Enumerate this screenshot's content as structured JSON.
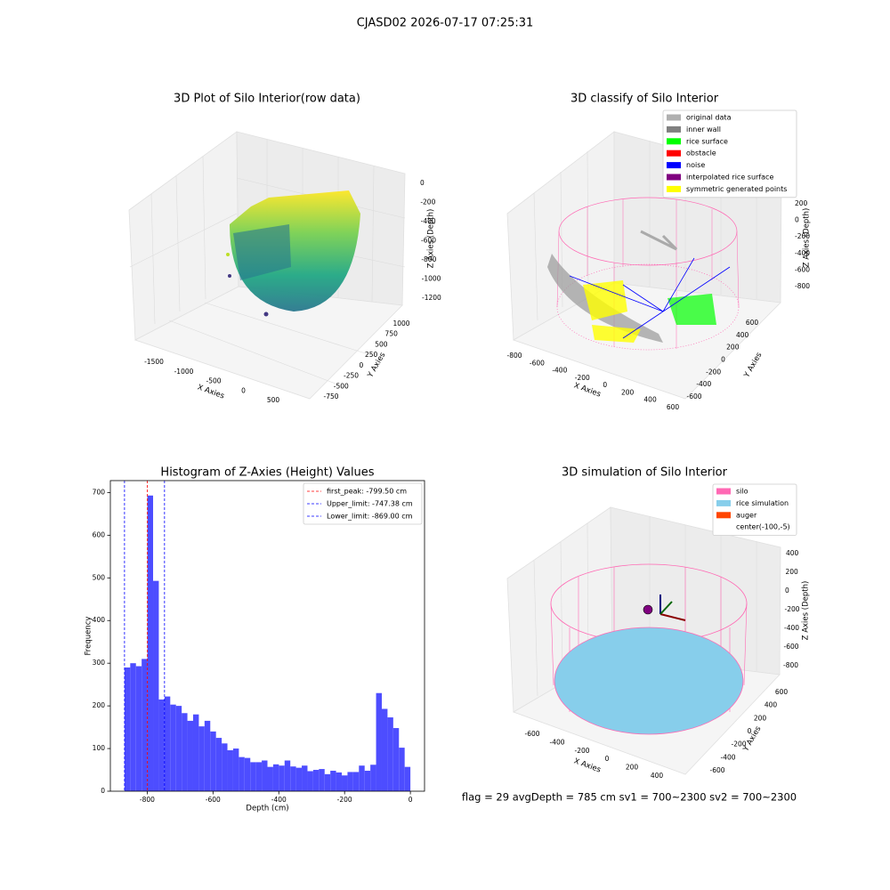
{
  "title": "CJASD02 2026-07-17 07:25:31",
  "footer": "flag = 29  avgDepth = 785 cm  sv1 = 700~2300  sv2 = 700~2300",
  "chart_data": [
    {
      "type": "scatter3d",
      "title": "3D Plot of Silo Interior(row data)",
      "xlabel": "X Axies",
      "ylabel": "Y Axies",
      "zlabel": "Z Axies (Depth)",
      "xticks": [
        -1500,
        -1000,
        -500,
        0,
        500
      ],
      "yticks": [
        -750,
        -500,
        -250,
        0,
        250,
        500,
        750,
        1000
      ],
      "zticks": [
        0,
        -200,
        -400,
        -600,
        -800,
        -1000,
        -1200
      ]
    },
    {
      "type": "scatter3d",
      "title": "3D classify of Silo Interior",
      "xlabel": "X Axies",
      "ylabel": "Y Axies",
      "zlabel": "Z Axies (Depth)",
      "xticks": [
        -800,
        -600,
        -400,
        -200,
        0,
        200,
        400,
        600
      ],
      "yticks": [
        -600,
        -400,
        -200,
        0,
        200,
        400,
        600
      ],
      "zticks": [
        200,
        0,
        -200,
        -400,
        -600,
        -800
      ],
      "legend": [
        {
          "name": "original data",
          "color": "#b0b0b0"
        },
        {
          "name": "inner wall",
          "color": "#808080"
        },
        {
          "name": "rice surface",
          "color": "#00ff00"
        },
        {
          "name": "obstacle",
          "color": "#ff0000"
        },
        {
          "name": "noise",
          "color": "#0000ff"
        },
        {
          "name": "interpolated rice surface",
          "color": "#800080"
        },
        {
          "name": "symmetric generated points",
          "color": "#ffff00"
        }
      ]
    },
    {
      "type": "histogram",
      "title": "Histogram of Z-Axies (Height) Values",
      "xlabel": "Depth (cm)",
      "ylabel": "Frequency",
      "color": "#4d4dff",
      "bins": [
        -869,
        -851.62,
        -834.24,
        -816.86,
        -799.48,
        -782.1,
        -764.72,
        -747.34,
        -729.96,
        -712.58,
        -695.2,
        -677.82,
        -660.44,
        -643.06,
        -625.68,
        -608.3,
        -590.92,
        -573.54,
        -556.16,
        -538.78,
        -521.4,
        -504.02,
        -486.64,
        -469.26,
        -451.88,
        -434.5,
        -417.12,
        -399.74,
        -382.36,
        -364.98,
        -347.6,
        -330.22,
        -312.84,
        -295.46,
        -278.08,
        -260.7,
        -243.32,
        -225.94,
        -208.56,
        -191.18,
        -173.8,
        -156.42,
        -139.04,
        -121.66,
        -104.28,
        -86.9,
        -69.52,
        -52.14,
        -34.76,
        -17.38,
        0
      ],
      "counts": [
        290,
        300,
        293,
        310,
        693,
        493,
        215,
        222,
        203,
        200,
        183,
        165,
        180,
        152,
        165,
        140,
        125,
        112,
        96,
        100,
        80,
        78,
        68,
        68,
        72,
        57,
        63,
        60,
        72,
        58,
        55,
        60,
        47,
        50,
        52,
        40,
        48,
        44,
        37,
        45,
        45,
        60,
        48,
        62,
        230,
        193,
        173,
        148,
        102,
        57
      ],
      "xlim": [
        -912,
        43
      ],
      "ylim": [
        0,
        728
      ],
      "xticks": [
        -800,
        -600,
        -400,
        -200,
        0
      ],
      "yticks": [
        0,
        100,
        200,
        300,
        400,
        500,
        600,
        700
      ],
      "lines": [
        {
          "label": "first_peak: -799.50 cm",
          "value": -799.5,
          "color": "#ff0000"
        },
        {
          "label": "Upper_limit: -747.38 cm",
          "value": -747.38,
          "color": "#0000ff"
        },
        {
          "label": "Lower_limit: -869.00 cm",
          "value": -869,
          "color": "#0000ff"
        }
      ],
      "legend_position": "upper right"
    },
    {
      "type": "scatter3d",
      "title": "3D simulation of Silo Interior",
      "xlabel": "X Axies",
      "ylabel": "Y Axies",
      "zlabel": "Z Axies (Depth)",
      "xticks": [
        -600,
        -400,
        -200,
        0,
        200,
        400
      ],
      "yticks": [
        -600,
        -400,
        -200,
        0,
        200,
        400,
        600
      ],
      "zticks": [
        400,
        200,
        0,
        -200,
        -400,
        -600,
        -800
      ],
      "legend": [
        {
          "name": "silo",
          "color": "#ff69b4"
        },
        {
          "name": "rice simulation",
          "color": "#87ceeb"
        },
        {
          "name": "auger",
          "color": "#ff4500"
        },
        {
          "name": "center(-100,-5)",
          "color": "#ffffff"
        }
      ]
    }
  ]
}
